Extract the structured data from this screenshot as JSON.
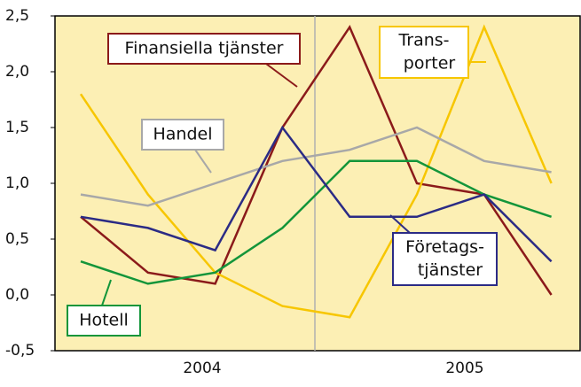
{
  "chart_data": {
    "type": "line",
    "categories": [
      null,
      null,
      null,
      null,
      null,
      null,
      null,
      null
    ],
    "x_groups": [
      {
        "label": "2004",
        "span": 4
      },
      {
        "label": "2005",
        "span": 4
      }
    ],
    "ylim": [
      -0.5,
      2.5
    ],
    "yticks": [
      {
        "value": -0.5,
        "label": "-0,5"
      },
      {
        "value": 0,
        "label": "0,0"
      },
      {
        "value": 0.5,
        "label": "0,5"
      },
      {
        "value": 1,
        "label": "1,0"
      },
      {
        "value": 1.5,
        "label": "1,5"
      },
      {
        "value": 2,
        "label": "2,0"
      },
      {
        "value": 2.5,
        "label": "2,5"
      }
    ],
    "series": [
      {
        "name": [
          "Finansiella tjänster"
        ],
        "color": "#8b1a1a",
        "values": [
          0.7,
          0.2,
          0.1,
          1.5,
          2.4,
          1.0,
          0.9,
          0.0
        ]
      },
      {
        "name": [
          "Trans-",
          "porter"
        ],
        "color": "#f7c600",
        "values": [
          1.8,
          0.9,
          0.2,
          -0.1,
          -0.2,
          0.9,
          2.4,
          1.0
        ]
      },
      {
        "name": [
          "Handel"
        ],
        "color": "#a8a8a8",
        "values": [
          0.9,
          0.8,
          1.0,
          1.2,
          1.3,
          1.5,
          1.2,
          1.1
        ]
      },
      {
        "name": [
          "Hotell"
        ],
        "color": "#13953a",
        "values": [
          0.3,
          0.1,
          0.2,
          0.6,
          1.2,
          1.2,
          0.9,
          0.7
        ]
      },
      {
        "name": [
          "Företags-",
          "tjänster"
        ],
        "color": "#2b2b85",
        "values": [
          0.7,
          0.6,
          0.4,
          1.5,
          0.7,
          0.7,
          0.9,
          0.3
        ]
      }
    ]
  }
}
